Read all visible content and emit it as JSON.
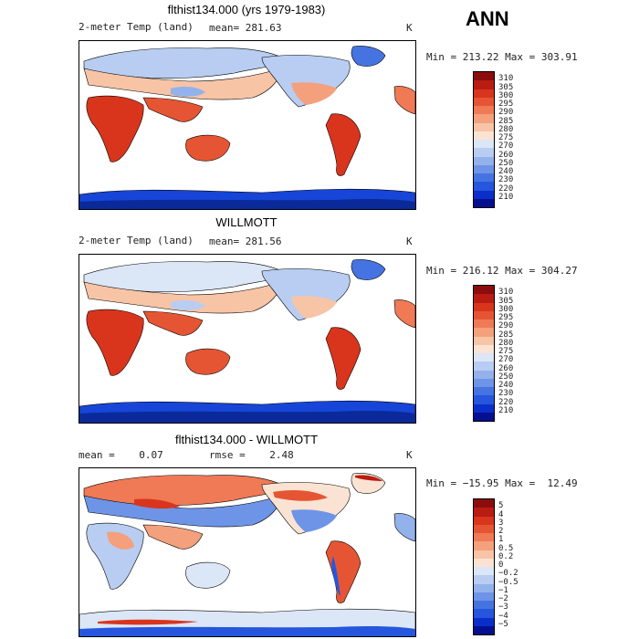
{
  "season": "ANN",
  "panels": [
    {
      "title": "flthist134.000 (yrs 1979-1983)",
      "left_label": "2-meter Temp (land)",
      "mean_label": "mean= 281.63",
      "unit": "K",
      "minmax": "Min = 213.22 Max = 303.91",
      "levels": [
        "310",
        "305",
        "300",
        "295",
        "290",
        "285",
        "280",
        "275",
        "270",
        "260",
        "250",
        "240",
        "230",
        "220",
        "210"
      ],
      "colors": [
        "#8b0d0d",
        "#b81c12",
        "#d9351d",
        "#e65533",
        "#ef7a55",
        "#f4a07c",
        "#f7c4a6",
        "#fbe3d3",
        "#dbe6f7",
        "#b8cdf1",
        "#93b2ec",
        "#6e94e7",
        "#4574e2",
        "#2656de",
        "#0a2fc8",
        "#050f8f"
      ]
    },
    {
      "title": "WILLMOTT",
      "left_label": "2-meter Temp (land)",
      "mean_label": "mean= 281.56",
      "unit": "K",
      "minmax": "Min = 216.12 Max = 304.27",
      "levels": [
        "310",
        "305",
        "300",
        "295",
        "290",
        "285",
        "280",
        "275",
        "270",
        "260",
        "250",
        "240",
        "230",
        "220",
        "210"
      ],
      "colors": [
        "#8b0d0d",
        "#b81c12",
        "#d9351d",
        "#e65533",
        "#ef7a55",
        "#f4a07c",
        "#f7c4a6",
        "#fbe3d3",
        "#dbe6f7",
        "#b8cdf1",
        "#93b2ec",
        "#6e94e7",
        "#4574e2",
        "#2656de",
        "#0a2fc8",
        "#050f8f"
      ]
    },
    {
      "title": "flthist134.000 - WILLMOTT",
      "left_label": "mean =    0.07",
      "mean_label": "rmse =    2.48",
      "unit": "K",
      "minmax": "Min = −15.95 Max =  12.49",
      "levels": [
        "5",
        "4",
        "3",
        "2",
        "1",
        "0.5",
        "0.2",
        "0",
        "−0.2",
        "−0.5",
        "−1",
        "−2",
        "−3",
        "−4",
        "−5"
      ],
      "colors": [
        "#8b0d0d",
        "#b81c12",
        "#d9351d",
        "#e65533",
        "#ef7a55",
        "#f4a07c",
        "#f7c4a6",
        "#fbe3d3",
        "#dbe6f7",
        "#b8cdf1",
        "#93b2ec",
        "#6e94e7",
        "#4574e2",
        "#2656de",
        "#0a2fc8",
        "#050f8f"
      ]
    }
  ]
}
